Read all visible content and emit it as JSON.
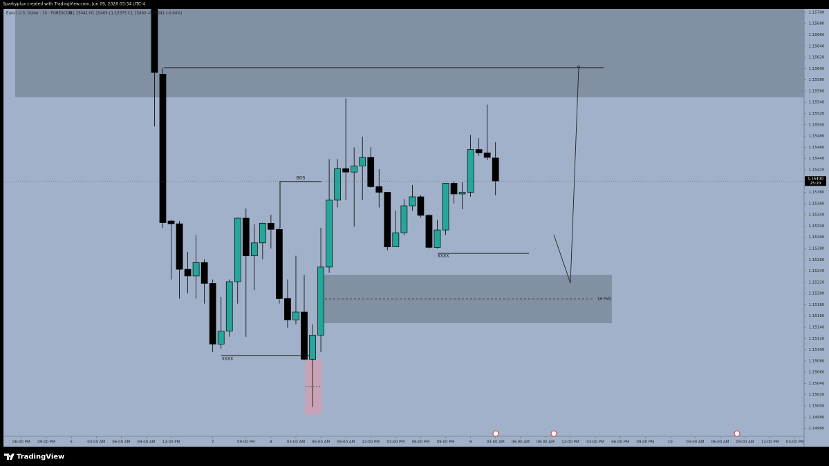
{
  "header": "Sparkyplux created with TradingView.com, Jun 09, 2026 03:34 UTC-4",
  "footer": {
    "brand": "TradingView"
  },
  "chart_data": {
    "type": "candlestick",
    "title": "Euro / U.S. Dollar · 1h · FOREXCOM",
    "legend": "O1.15441 H1.15469 L1.15375 C1.15400 -0.00041 (-0.04%)",
    "last_price_label": "1.15400",
    "countdown": "25:20",
    "up_color": "#26a69a",
    "down_color": "#000000",
    "annotations": {
      "bos": "BOS",
      "low_1": "XXXX",
      "low_2": "XXXX",
      "fvg": "1H FVG"
    },
    "x": [
      16,
      17,
      18,
      19,
      20,
      21,
      22,
      23,
      24,
      25,
      26,
      27,
      28,
      29,
      30,
      31,
      32,
      33,
      34,
      35,
      36,
      37,
      38,
      39,
      40,
      41,
      42,
      43,
      44,
      45,
      46,
      47,
      48,
      49,
      50,
      51,
      52,
      53,
      54,
      55,
      56,
      57
    ],
    "open": [
      1.1572,
      1.1559,
      1.15329,
      1.15324,
      1.15243,
      1.15231,
      1.15255,
      1.15218,
      1.1511,
      1.15133,
      1.15221,
      1.15334,
      1.15267,
      1.1529,
      1.15325,
      1.15314,
      1.15191,
      1.15153,
      1.15167,
      1.15083,
      1.15126,
      1.15247,
      1.15366,
      1.15422,
      1.15416,
      1.15427,
      1.15442,
      1.1539,
      1.1538,
      1.15283,
      1.15308,
      1.15356,
      1.15372,
      1.15339,
      1.15282,
      1.15313,
      1.15396,
      1.15377,
      1.1538,
      1.15456,
      1.1545,
      1.15441
    ],
    "high": [
      1.1574,
      1.15601,
      1.15331,
      1.15329,
      1.15274,
      1.15304,
      1.15261,
      1.15225,
      1.15194,
      1.15225,
      1.15334,
      1.15351,
      1.15323,
      1.15326,
      1.1534,
      1.15317,
      1.15225,
      1.15267,
      1.15233,
      1.15145,
      1.15317,
      1.15439,
      1.15439,
      1.15547,
      1.1546,
      1.15479,
      1.1546,
      1.15421,
      1.1538,
      1.15347,
      1.15368,
      1.15393,
      1.15375,
      1.15341,
      1.15331,
      1.15396,
      1.154,
      1.15398,
      1.15482,
      1.15476,
      1.15536,
      1.15469
    ],
    "low": [
      1.15497,
      1.15317,
      1.15225,
      1.15191,
      1.152,
      1.15191,
      1.15182,
      1.15096,
      1.15102,
      1.15123,
      1.15182,
      1.15123,
      1.15206,
      1.15261,
      1.1528,
      1.15182,
      1.15139,
      1.15145,
      1.15081,
      1.14998,
      1.15096,
      1.15237,
      1.15353,
      1.15366,
      1.15319,
      1.15366,
      1.15388,
      1.15353,
      1.15277,
      1.15283,
      1.15304,
      1.15347,
      1.15335,
      1.1528,
      1.1528,
      1.15304,
      1.1536,
      1.1535,
      1.15372,
      1.15445,
      1.15437,
      1.15375
    ],
    "close": [
      1.15593,
      1.15326,
      1.15324,
      1.15243,
      1.15231,
      1.15255,
      1.15218,
      1.1511,
      1.15133,
      1.15221,
      1.15334,
      1.15267,
      1.1529,
      1.15325,
      1.15314,
      1.15191,
      1.15153,
      1.15167,
      1.15083,
      1.15126,
      1.15247,
      1.15366,
      1.15422,
      1.15416,
      1.15427,
      1.15442,
      1.1539,
      1.1538,
      1.15283,
      1.15308,
      1.15356,
      1.15372,
      1.15339,
      1.15282,
      1.15313,
      1.15396,
      1.15377,
      1.1538,
      1.15456,
      1.1545,
      1.15442,
      1.154
    ],
    "xlim": [
      -2.16,
      94.1
    ],
    "xticks": [
      {
        "value": 0,
        "label": "06:00 PM"
      },
      {
        "value": 3,
        "label": "09:00 PM"
      },
      {
        "value": 6,
        "label": "5"
      },
      {
        "value": 9,
        "label": "03:00 AM"
      },
      {
        "value": 12,
        "label": "06:00 AM"
      },
      {
        "value": 15,
        "label": "09:00 AM"
      },
      {
        "value": 18,
        "label": "12:00 PM"
      },
      {
        "value": 23,
        "label": "7"
      },
      {
        "value": 27,
        "label": "09:00 PM"
      },
      {
        "value": 30,
        "label": "8"
      },
      {
        "value": 33,
        "label": "03:00 AM"
      },
      {
        "value": 36,
        "label": "06:00 AM"
      },
      {
        "value": 39,
        "label": "09:00 AM"
      },
      {
        "value": 42,
        "label": "12:00 PM"
      },
      {
        "value": 45,
        "label": "03:00 PM"
      },
      {
        "value": 48,
        "label": "06:00 PM"
      },
      {
        "value": 51,
        "label": "09:00 PM"
      },
      {
        "value": 54,
        "label": "9"
      },
      {
        "value": 57,
        "label": "03:00 AM"
      },
      {
        "value": 60,
        "label": "06:00 AM"
      },
      {
        "value": 63,
        "label": "09:00 AM"
      },
      {
        "value": 66,
        "label": "12:00 PM"
      },
      {
        "value": 69,
        "label": "03:00 PM"
      },
      {
        "value": 72,
        "label": "06:00 PM"
      },
      {
        "value": 75,
        "label": "09:00 PM"
      },
      {
        "value": 78,
        "label": "10"
      },
      {
        "value": 81,
        "label": "03:00 AM"
      },
      {
        "value": 84,
        "label": "06:00 AM"
      },
      {
        "value": 87,
        "label": "09:00 AM"
      },
      {
        "value": 90,
        "label": "12:00 PM"
      },
      {
        "value": 93,
        "label": "03:00 PM"
      }
    ],
    "ylim": [
      1.14946,
      1.15706
    ],
    "yticks": [
      {
        "value": 1.1496,
        "label": "1.14960"
      },
      {
        "value": 1.1498,
        "label": "1.14980"
      },
      {
        "value": 1.15,
        "label": "1.15000"
      },
      {
        "value": 1.1502,
        "label": "1.15020"
      },
      {
        "value": 1.1504,
        "label": "1.15040"
      },
      {
        "value": 1.1506,
        "label": "1.15060"
      },
      {
        "value": 1.1508,
        "label": "1.15080"
      },
      {
        "value": 1.151,
        "label": "1.15100"
      },
      {
        "value": 1.1512,
        "label": "1.15120"
      },
      {
        "value": 1.1514,
        "label": "1.15140"
      },
      {
        "value": 1.1516,
        "label": "1.15160"
      },
      {
        "value": 1.1518,
        "label": "1.15180"
      },
      {
        "value": 1.152,
        "label": "1.15200"
      },
      {
        "value": 1.1522,
        "label": "1.15220"
      },
      {
        "value": 1.1524,
        "label": "1.15240"
      },
      {
        "value": 1.1526,
        "label": "1.15260"
      },
      {
        "value": 1.1528,
        "label": "1.15280"
      },
      {
        "value": 1.153,
        "label": "1.15300"
      },
      {
        "value": 1.1532,
        "label": "1.15320"
      },
      {
        "value": 1.1534,
        "label": "1.15340"
      },
      {
        "value": 1.1536,
        "label": "1.15360"
      },
      {
        "value": 1.1538,
        "label": "1.15380"
      },
      {
        "value": 1.154,
        "label": "1.15400"
      },
      {
        "value": 1.1542,
        "label": "1.15420"
      },
      {
        "value": 1.1544,
        "label": "1.15440"
      },
      {
        "value": 1.1546,
        "label": "1.15460"
      },
      {
        "value": 1.1548,
        "label": "1.15480"
      },
      {
        "value": 1.155,
        "label": "1.15500"
      },
      {
        "value": 1.1552,
        "label": "1.15520"
      },
      {
        "value": 1.1554,
        "label": "1.15540"
      },
      {
        "value": 1.1556,
        "label": "1.15560"
      },
      {
        "value": 1.1558,
        "label": "1.15580"
      },
      {
        "value": 1.156,
        "label": "1.15600"
      },
      {
        "value": 1.1562,
        "label": "1.15620"
      },
      {
        "value": 1.1564,
        "label": "1.15640"
      },
      {
        "value": 1.1566,
        "label": "1.15660"
      },
      {
        "value": 1.1568,
        "label": "1.15680"
      },
      {
        "value": 1.157,
        "label": "1.15700"
      }
    ]
  }
}
